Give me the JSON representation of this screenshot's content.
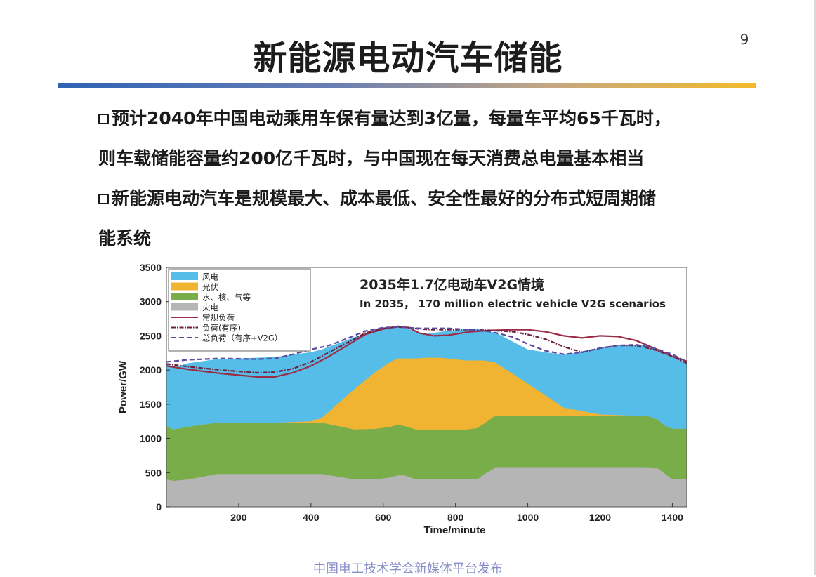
{
  "page_number": "9",
  "title": "新能源电动汽车储能",
  "bullets": [
    {
      "lines": [
        "预计2040年中国电动乘用车保有量达到3亿量，每量车平均65千瓦时，",
        "则车载储能容量约200亿千瓦时，与中国现在每天消费总电量基本相当"
      ]
    },
    {
      "lines": [
        "新能源电动汽车是规模最大、成本最低、安全性最好的分布式短周期储",
        "能系统"
      ]
    }
  ],
  "footer": "中国电工技术学会新媒体平台发布",
  "colors": {
    "wind": "#55bde8",
    "solar": "#f0b432",
    "hydro_nuclear_gas": "#79ad4a",
    "thermal": "#b5b5b5",
    "load_line": "#9b2c48",
    "ordered_load": "#6e1f3e",
    "total_load": "#5a4aa2"
  },
  "chart_data": {
    "type": "area",
    "title": "2035年1.7亿电动车V2G情境",
    "subtitle": "In 2035，  170 million electric vehicle V2G scenarios",
    "xlabel": "Time/minute",
    "ylabel": "Power/GW",
    "xlim": [
      0,
      1440
    ],
    "ylim": [
      0,
      3500
    ],
    "xticks": [
      200,
      400,
      600,
      800,
      1000,
      1200,
      1400
    ],
    "yticks": [
      0,
      500,
      1000,
      1500,
      2000,
      2500,
      3000,
      3500
    ],
    "legend_position": "top-left",
    "x": [
      0,
      20,
      60,
      140,
      200,
      300,
      400,
      430,
      520,
      580,
      620,
      640,
      660,
      690,
      720,
      760,
      830,
      860,
      880,
      910,
      1000,
      1100,
      1200,
      1250,
      1300,
      1330,
      1360,
      1380,
      1400,
      1440
    ],
    "stack_series": [
      {
        "name": "火电",
        "color_key": "thermal",
        "values": [
          400,
          380,
          400,
          480,
          480,
          480,
          480,
          480,
          400,
          400,
          430,
          460,
          460,
          400,
          400,
          400,
          400,
          400,
          480,
          570,
          570,
          570,
          570,
          570,
          570,
          570,
          560,
          480,
          400,
          400
        ]
      },
      {
        "name": "水、核、气等",
        "color_key": "hydro_nuclear_gas",
        "values": [
          1180,
          1130,
          1170,
          1230,
          1230,
          1230,
          1230,
          1230,
          1130,
          1140,
          1170,
          1200,
          1180,
          1130,
          1130,
          1130,
          1130,
          1150,
          1220,
          1330,
          1330,
          1330,
          1330,
          1330,
          1330,
          1330,
          1270,
          1180,
          1140,
          1140
        ]
      },
      {
        "name": "光伏",
        "color_key": "solar",
        "values": [
          1180,
          1130,
          1170,
          1230,
          1230,
          1230,
          1250,
          1300,
          1720,
          1980,
          2120,
          2170,
          2170,
          2170,
          2180,
          2180,
          2140,
          2140,
          2140,
          2110,
          1800,
          1450,
          1350,
          1340,
          1330,
          1330,
          1270,
          1180,
          1140,
          1140
        ]
      },
      {
        "name": "风电",
        "color_key": "wind",
        "values": [
          2100,
          2040,
          2100,
          2160,
          2170,
          2190,
          2260,
          2300,
          2480,
          2590,
          2620,
          2640,
          2620,
          2560,
          2530,
          2560,
          2600,
          2600,
          2570,
          2550,
          2300,
          2220,
          2320,
          2360,
          2370,
          2370,
          2310,
          2250,
          2200,
          2100
        ]
      }
    ],
    "line_series": [
      {
        "name": "常规负荷",
        "color_key": "load_line",
        "style": "solid",
        "x": [
          0,
          60,
          150,
          250,
          300,
          350,
          400,
          450,
          500,
          550,
          600,
          640,
          670,
          700,
          740,
          780,
          840,
          900,
          960,
          1000,
          1050,
          1100,
          1150,
          1200,
          1250,
          1300,
          1350,
          1400,
          1440
        ],
        "values": [
          2060,
          2010,
          1950,
          1900,
          1900,
          1960,
          2060,
          2200,
          2360,
          2520,
          2600,
          2640,
          2620,
          2540,
          2500,
          2510,
          2560,
          2580,
          2590,
          2590,
          2560,
          2500,
          2470,
          2500,
          2490,
          2430,
          2320,
          2200,
          2130
        ]
      },
      {
        "name": "负荷(有序)",
        "color_key": "ordered_load",
        "style": "dashdot",
        "x": [
          0,
          60,
          150,
          250,
          300,
          350,
          400,
          450,
          500,
          550,
          600,
          640,
          670,
          700,
          740,
          780,
          840,
          900,
          960,
          1000,
          1050,
          1100,
          1150,
          1200,
          1250,
          1300,
          1350,
          1400,
          1440
        ],
        "values": [
          2090,
          2050,
          2000,
          1960,
          1970,
          2020,
          2120,
          2260,
          2400,
          2540,
          2610,
          2630,
          2620,
          2600,
          2590,
          2590,
          2590,
          2580,
          2560,
          2520,
          2450,
          2340,
          2260,
          2320,
          2360,
          2360,
          2300,
          2200,
          2100
        ]
      },
      {
        "name": "总负荷（有序+V2G）",
        "color_key": "total_load",
        "style": "dashed",
        "x": [
          0,
          60,
          150,
          250,
          300,
          350,
          400,
          450,
          500,
          550,
          600,
          640,
          670,
          700,
          740,
          780,
          840,
          900,
          960,
          1000,
          1050,
          1100,
          1150,
          1200,
          1250,
          1300,
          1350,
          1400,
          1440
        ],
        "values": [
          2120,
          2150,
          2170,
          2160,
          2170,
          2230,
          2300,
          2360,
          2460,
          2570,
          2620,
          2630,
          2620,
          2610,
          2610,
          2610,
          2590,
          2560,
          2480,
          2380,
          2280,
          2230,
          2260,
          2320,
          2360,
          2370,
          2320,
          2230,
          2120
        ]
      }
    ]
  }
}
